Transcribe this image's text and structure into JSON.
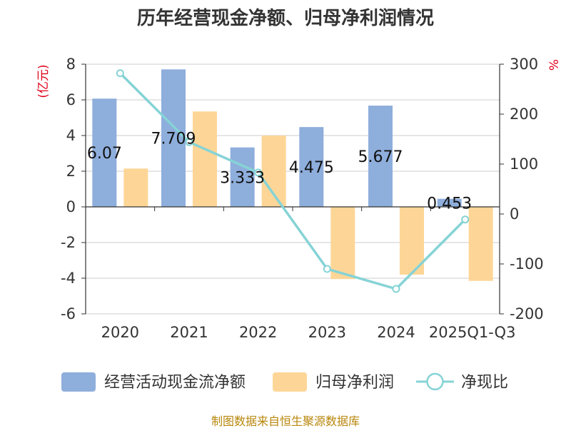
{
  "chart_data": {
    "type": "bar",
    "title": "历年经营现金净额、归母净利润情况",
    "categories": [
      "2020",
      "2021",
      "2022",
      "2023",
      "2024",
      "2025Q1-Q3"
    ],
    "y_left": {
      "unit": "(亿元)",
      "ylim": [
        -6,
        8
      ],
      "ticks": [
        8,
        6,
        4,
        2,
        0,
        -2,
        -4,
        -6
      ]
    },
    "y_right": {
      "unit": "%",
      "ylim": [
        -200,
        300
      ],
      "ticks": [
        300,
        200,
        100,
        0,
        -100,
        -200
      ]
    },
    "series": [
      {
        "name": "经营活动现金流净额",
        "type": "bar",
        "axis": "left",
        "color": "#8eaedc",
        "values": [
          6.07,
          7.709,
          3.333,
          4.475,
          5.677,
          0.453
        ],
        "labels": [
          "6.07",
          "7.709",
          "3.333",
          "4.475",
          "5.677",
          "0.453"
        ]
      },
      {
        "name": "归母净利润",
        "type": "bar",
        "axis": "left",
        "color": "#fdd697",
        "values": [
          2.15,
          5.35,
          4.0,
          -4.05,
          -3.8,
          -4.15
        ]
      },
      {
        "name": "净现比",
        "type": "line",
        "axis": "right",
        "color": "#86d3d6",
        "values": [
          282,
          144,
          83,
          -110,
          -150,
          -11
        ]
      }
    ],
    "grid": true,
    "legend_position": "bottom"
  },
  "source": "制图数据来自恒生聚源数据库"
}
